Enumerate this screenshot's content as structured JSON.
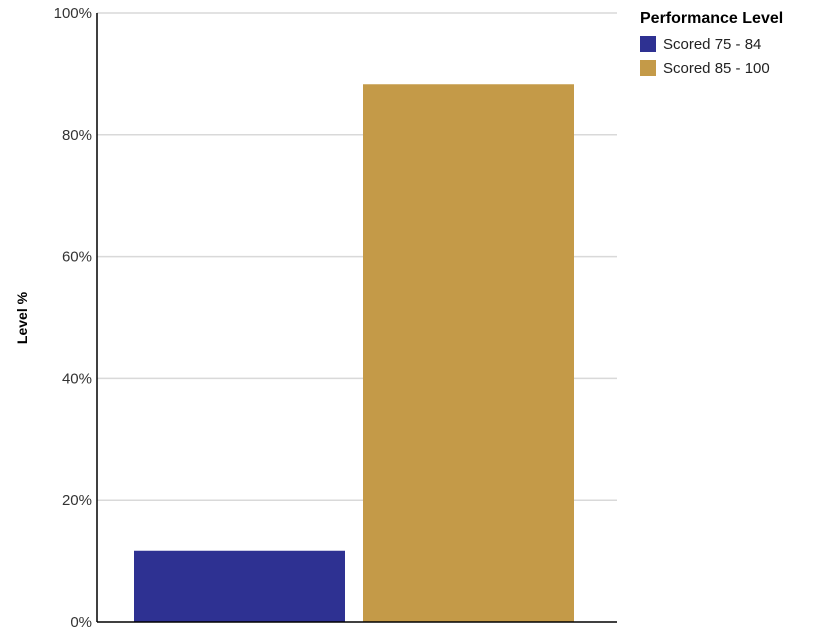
{
  "chart_data": {
    "type": "bar",
    "categories": [
      "Scored 75 - 84",
      "Scored 85 - 100"
    ],
    "values": [
      11.7,
      88.3
    ],
    "colors": [
      "#2e3192",
      "#c49a48"
    ],
    "ylabel": "Level %",
    "ylim": [
      0,
      100
    ],
    "yticks": [
      0,
      20,
      40,
      60,
      80,
      100
    ],
    "ytick_labels": [
      "0%",
      "20%",
      "40%",
      "60%",
      "80%",
      "100%"
    ],
    "grid": true,
    "legend_placement": "top-right",
    "legend": {
      "title": "Performance Level",
      "entries": [
        "Scored 75 - 84",
        "Scored 85 - 100"
      ]
    }
  }
}
